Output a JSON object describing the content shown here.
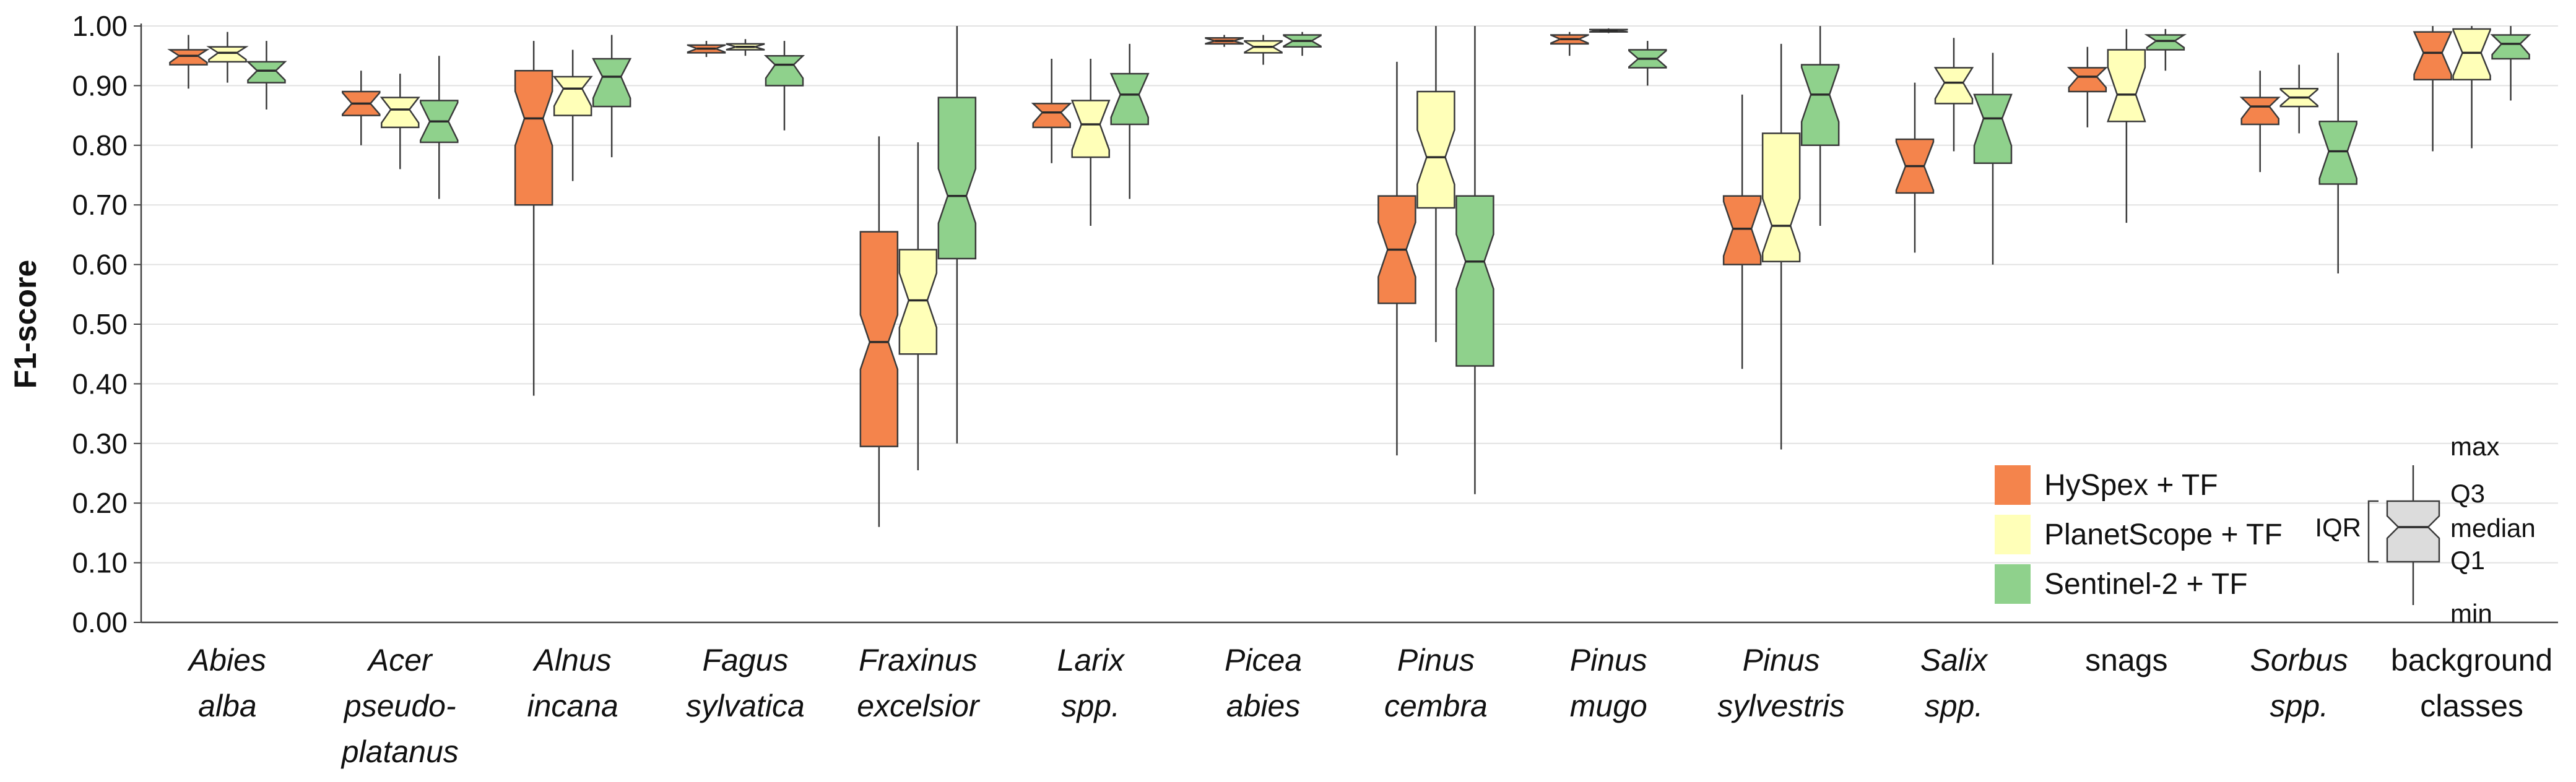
{
  "chart_data": {
    "type": "box",
    "ylabel": "F1-score",
    "xlabel": "",
    "ylim": [
      0,
      1
    ],
    "yticks": [
      "0.00",
      "0.10",
      "0.20",
      "0.30",
      "0.40",
      "0.50",
      "0.60",
      "0.70",
      "0.80",
      "0.90",
      "1.00"
    ],
    "grid": true,
    "legend_position": "bottom-right",
    "categories": [
      {
        "lines": [
          "Abies",
          "alba"
        ],
        "italic": true
      },
      {
        "lines": [
          "Acer",
          "pseudo-",
          "platanus"
        ],
        "italic": true
      },
      {
        "lines": [
          "Alnus",
          "incana"
        ],
        "italic": true
      },
      {
        "lines": [
          "Fagus",
          "sylvatica"
        ],
        "italic": true
      },
      {
        "lines": [
          "Fraxinus",
          "excelsior"
        ],
        "italic": true
      },
      {
        "lines": [
          "Larix",
          "spp."
        ],
        "italic": true
      },
      {
        "lines": [
          "Picea",
          "abies"
        ],
        "italic": true
      },
      {
        "lines": [
          "Pinus",
          "cembra"
        ],
        "italic": true
      },
      {
        "lines": [
          "Pinus",
          "mugo"
        ],
        "italic": true
      },
      {
        "lines": [
          "Pinus",
          "sylvestris"
        ],
        "italic": true
      },
      {
        "lines": [
          "Salix",
          "spp."
        ],
        "italic": true
      },
      {
        "lines": [
          "snags"
        ],
        "italic": false
      },
      {
        "lines": [
          "Sorbus",
          "spp."
        ],
        "italic": true
      },
      {
        "lines": [
          "background",
          "classes"
        ],
        "italic": false
      }
    ],
    "series": [
      {
        "name": "HySpex + TF",
        "color": "#F4844C",
        "boxes": [
          {
            "min": 0.895,
            "q1": 0.935,
            "median": 0.95,
            "q3": 0.96,
            "max": 0.985
          },
          {
            "min": 0.8,
            "q1": 0.85,
            "median": 0.87,
            "q3": 0.89,
            "max": 0.925
          },
          {
            "min": 0.38,
            "q1": 0.7,
            "median": 0.845,
            "q3": 0.925,
            "max": 0.975
          },
          {
            "min": 0.948,
            "q1": 0.955,
            "median": 0.962,
            "q3": 0.968,
            "max": 0.975
          },
          {
            "min": 0.16,
            "q1": 0.295,
            "median": 0.47,
            "q3": 0.655,
            "max": 0.815
          },
          {
            "min": 0.77,
            "q1": 0.83,
            "median": 0.855,
            "q3": 0.87,
            "max": 0.945
          },
          {
            "min": 0.965,
            "q1": 0.97,
            "median": 0.975,
            "q3": 0.98,
            "max": 0.985
          },
          {
            "min": 0.28,
            "q1": 0.535,
            "median": 0.625,
            "q3": 0.715,
            "max": 0.94
          },
          {
            "min": 0.95,
            "q1": 0.97,
            "median": 0.978,
            "q3": 0.985,
            "max": 0.99
          },
          {
            "min": 0.425,
            "q1": 0.6,
            "median": 0.66,
            "q3": 0.715,
            "max": 0.885
          },
          {
            "min": 0.62,
            "q1": 0.72,
            "median": 0.765,
            "q3": 0.81,
            "max": 0.905
          },
          {
            "min": 0.83,
            "q1": 0.89,
            "median": 0.915,
            "q3": 0.93,
            "max": 0.965
          },
          {
            "min": 0.755,
            "q1": 0.835,
            "median": 0.865,
            "q3": 0.88,
            "max": 0.925
          },
          {
            "min": 0.79,
            "q1": 0.91,
            "median": 0.955,
            "q3": 0.99,
            "max": 1.0
          }
        ]
      },
      {
        "name": "PlanetScope + TF",
        "color": "#FFFFB8",
        "boxes": [
          {
            "min": 0.905,
            "q1": 0.94,
            "median": 0.955,
            "q3": 0.965,
            "max": 0.99
          },
          {
            "min": 0.76,
            "q1": 0.83,
            "median": 0.86,
            "q3": 0.88,
            "max": 0.92
          },
          {
            "min": 0.74,
            "q1": 0.85,
            "median": 0.895,
            "q3": 0.915,
            "max": 0.96
          },
          {
            "min": 0.95,
            "q1": 0.96,
            "median": 0.965,
            "q3": 0.97,
            "max": 0.978
          },
          {
            "min": 0.255,
            "q1": 0.45,
            "median": 0.54,
            "q3": 0.625,
            "max": 0.805
          },
          {
            "min": 0.665,
            "q1": 0.78,
            "median": 0.835,
            "q3": 0.875,
            "max": 0.945
          },
          {
            "min": 0.935,
            "q1": 0.955,
            "median": 0.965,
            "q3": 0.975,
            "max": 0.985
          },
          {
            "min": 0.47,
            "q1": 0.695,
            "median": 0.78,
            "q3": 0.89,
            "max": 1.0
          },
          {
            "min": 0.988,
            "q1": 0.99,
            "median": 0.992,
            "q3": 0.994,
            "max": 0.996
          },
          {
            "min": 0.29,
            "q1": 0.605,
            "median": 0.665,
            "q3": 0.82,
            "max": 0.97
          },
          {
            "min": 0.79,
            "q1": 0.87,
            "median": 0.905,
            "q3": 0.93,
            "max": 0.98
          },
          {
            "min": 0.67,
            "q1": 0.84,
            "median": 0.885,
            "q3": 0.96,
            "max": 0.995
          },
          {
            "min": 0.82,
            "q1": 0.865,
            "median": 0.88,
            "q3": 0.895,
            "max": 0.935
          },
          {
            "min": 0.795,
            "q1": 0.91,
            "median": 0.955,
            "q3": 0.995,
            "max": 1.0
          }
        ]
      },
      {
        "name": "Sentinel-2 + TF",
        "color": "#8FD18C",
        "boxes": [
          {
            "min": 0.86,
            "q1": 0.905,
            "median": 0.925,
            "q3": 0.94,
            "max": 0.975
          },
          {
            "min": 0.71,
            "q1": 0.805,
            "median": 0.84,
            "q3": 0.875,
            "max": 0.95
          },
          {
            "min": 0.78,
            "q1": 0.865,
            "median": 0.915,
            "q3": 0.945,
            "max": 0.985
          },
          {
            "min": 0.825,
            "q1": 0.9,
            "median": 0.935,
            "q3": 0.95,
            "max": 0.975
          },
          {
            "min": 0.3,
            "q1": 0.61,
            "median": 0.715,
            "q3": 0.88,
            "max": 1.0
          },
          {
            "min": 0.71,
            "q1": 0.835,
            "median": 0.885,
            "q3": 0.92,
            "max": 0.97
          },
          {
            "min": 0.95,
            "q1": 0.965,
            "median": 0.975,
            "q3": 0.985,
            "max": 0.99
          },
          {
            "min": 0.215,
            "q1": 0.43,
            "median": 0.605,
            "q3": 0.715,
            "max": 1.0
          },
          {
            "min": 0.9,
            "q1": 0.93,
            "median": 0.945,
            "q3": 0.96,
            "max": 0.975
          },
          {
            "min": 0.665,
            "q1": 0.8,
            "median": 0.885,
            "q3": 0.935,
            "max": 1.0
          },
          {
            "min": 0.6,
            "q1": 0.77,
            "median": 0.845,
            "q3": 0.885,
            "max": 0.955
          },
          {
            "min": 0.925,
            "q1": 0.96,
            "median": 0.975,
            "q3": 0.985,
            "max": 0.995
          },
          {
            "min": 0.585,
            "q1": 0.735,
            "median": 0.79,
            "q3": 0.84,
            "max": 0.955
          },
          {
            "min": 0.875,
            "q1": 0.945,
            "median": 0.97,
            "q3": 0.985,
            "max": 1.0
          }
        ]
      }
    ],
    "explanation_legend": {
      "labels": [
        "max",
        "Q3",
        "median",
        "Q1",
        "min"
      ],
      "bracket_label": "IQR",
      "color": "#DCDCDC"
    }
  }
}
